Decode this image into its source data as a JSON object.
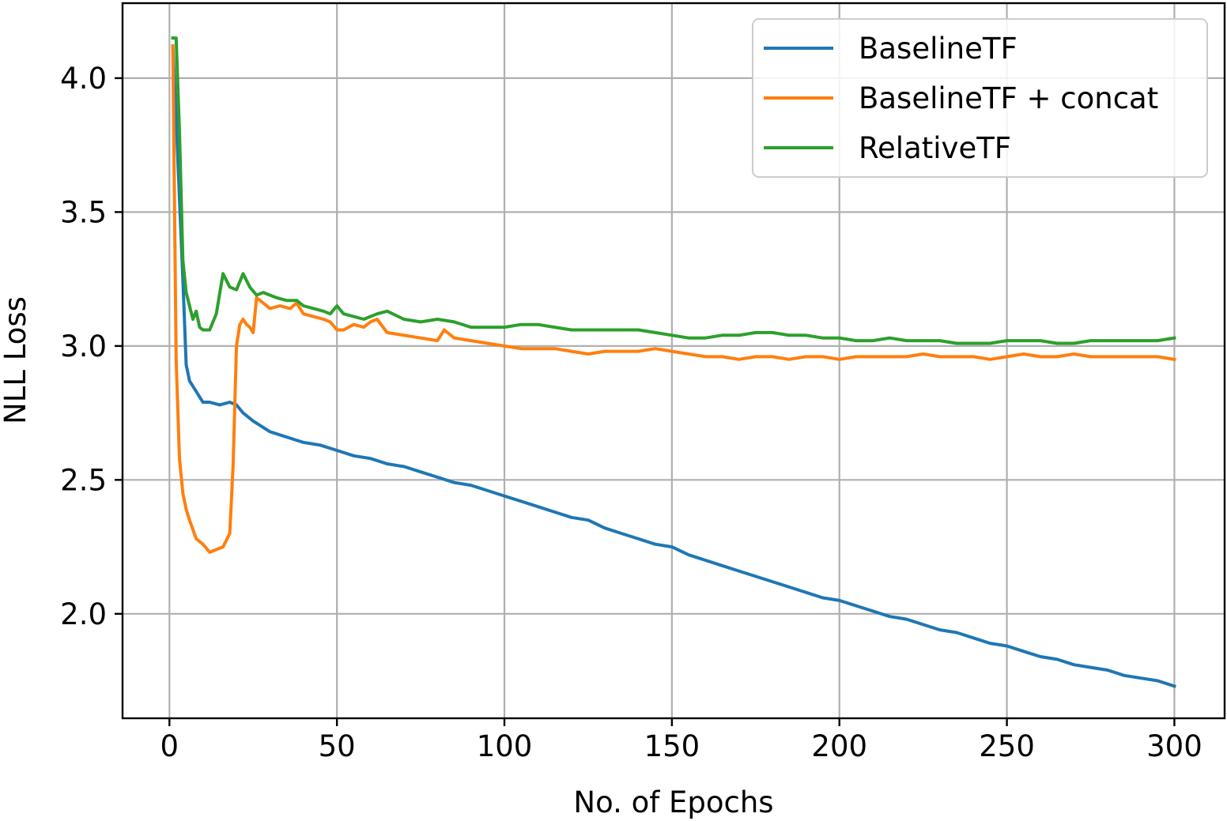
{
  "chart_data": {
    "type": "line",
    "title": "",
    "xlabel": "No. of Epochs",
    "ylabel": "NLL Loss",
    "xlim": [
      -14,
      315
    ],
    "ylim": [
      1.61,
      4.28
    ],
    "xticks": [
      0,
      50,
      100,
      150,
      200,
      250,
      300
    ],
    "xtick_labels": [
      "0",
      "50",
      "100",
      "150",
      "200",
      "250",
      "300"
    ],
    "yticks": [
      2.0,
      2.5,
      3.0,
      3.5,
      4.0
    ],
    "ytick_labels": [
      "2.0",
      "2.5",
      "3.0",
      "3.5",
      "4.0"
    ],
    "grid": true,
    "legend": "top-right",
    "series": [
      {
        "name": "BaselineTF",
        "color": "#1f77b4",
        "x": [
          1,
          2,
          3,
          4,
          5,
          6,
          8,
          10,
          12,
          15,
          18,
          20,
          22,
          25,
          30,
          35,
          40,
          45,
          50,
          55,
          60,
          65,
          70,
          75,
          80,
          85,
          90,
          95,
          100,
          105,
          110,
          115,
          120,
          125,
          130,
          135,
          140,
          145,
          150,
          155,
          160,
          165,
          170,
          175,
          180,
          185,
          190,
          195,
          200,
          205,
          210,
          215,
          220,
          225,
          230,
          235,
          240,
          245,
          250,
          255,
          260,
          265,
          270,
          275,
          280,
          285,
          290,
          295,
          300
        ],
        "values": [
          4.12,
          3.85,
          3.55,
          3.25,
          2.93,
          2.87,
          2.83,
          2.79,
          2.79,
          2.78,
          2.79,
          2.78,
          2.75,
          2.72,
          2.68,
          2.66,
          2.64,
          2.63,
          2.61,
          2.59,
          2.58,
          2.56,
          2.55,
          2.53,
          2.51,
          2.49,
          2.48,
          2.46,
          2.44,
          2.42,
          2.4,
          2.38,
          2.36,
          2.35,
          2.32,
          2.3,
          2.28,
          2.26,
          2.25,
          2.22,
          2.2,
          2.18,
          2.16,
          2.14,
          2.12,
          2.1,
          2.08,
          2.06,
          2.05,
          2.03,
          2.01,
          1.99,
          1.98,
          1.96,
          1.94,
          1.93,
          1.91,
          1.89,
          1.88,
          1.86,
          1.84,
          1.83,
          1.81,
          1.8,
          1.79,
          1.77,
          1.76,
          1.75,
          1.73
        ]
      },
      {
        "name": "BaselineTF + concat",
        "color": "#ff7f0e",
        "x": [
          1,
          2,
          3,
          4,
          5,
          6,
          8,
          10,
          12,
          14,
          16,
          18,
          19,
          20,
          21,
          22,
          23,
          24,
          25,
          26,
          28,
          30,
          33,
          36,
          38,
          40,
          43,
          46,
          48,
          50,
          52,
          55,
          58,
          60,
          62,
          65,
          70,
          75,
          80,
          82,
          85,
          90,
          95,
          100,
          105,
          110,
          115,
          120,
          125,
          130,
          135,
          140,
          145,
          150,
          155,
          160,
          165,
          170,
          175,
          180,
          185,
          190,
          195,
          200,
          205,
          210,
          215,
          220,
          225,
          230,
          235,
          240,
          245,
          250,
          255,
          260,
          265,
          270,
          275,
          280,
          285,
          290,
          295,
          300
        ],
        "values": [
          4.12,
          2.95,
          2.58,
          2.45,
          2.39,
          2.35,
          2.28,
          2.26,
          2.23,
          2.24,
          2.25,
          2.3,
          2.55,
          3.0,
          3.08,
          3.1,
          3.08,
          3.07,
          3.05,
          3.18,
          3.16,
          3.14,
          3.15,
          3.14,
          3.16,
          3.12,
          3.11,
          3.1,
          3.09,
          3.06,
          3.06,
          3.08,
          3.07,
          3.09,
          3.1,
          3.05,
          3.04,
          3.03,
          3.02,
          3.06,
          3.03,
          3.02,
          3.01,
          3.0,
          2.99,
          2.99,
          2.99,
          2.98,
          2.97,
          2.98,
          2.98,
          2.98,
          2.99,
          2.98,
          2.97,
          2.96,
          2.96,
          2.95,
          2.96,
          2.96,
          2.95,
          2.96,
          2.96,
          2.95,
          2.96,
          2.96,
          2.96,
          2.96,
          2.97,
          2.96,
          2.96,
          2.96,
          2.95,
          2.96,
          2.97,
          2.96,
          2.96,
          2.97,
          2.96,
          2.96,
          2.96,
          2.96,
          2.96,
          2.95
        ]
      },
      {
        "name": "RelativeTF",
        "color": "#2ca02c",
        "x": [
          1,
          2,
          3,
          4,
          5,
          6,
          7,
          8,
          9,
          10,
          12,
          14,
          16,
          18,
          20,
          22,
          24,
          26,
          28,
          30,
          32,
          35,
          38,
          40,
          43,
          46,
          48,
          50,
          52,
          55,
          58,
          60,
          62,
          65,
          70,
          75,
          80,
          85,
          90,
          95,
          100,
          105,
          110,
          115,
          120,
          125,
          130,
          135,
          140,
          145,
          150,
          155,
          160,
          165,
          170,
          175,
          180,
          185,
          190,
          195,
          200,
          205,
          210,
          215,
          220,
          225,
          230,
          235,
          240,
          245,
          250,
          255,
          260,
          265,
          270,
          275,
          280,
          285,
          290,
          295,
          300
        ],
        "values": [
          4.15,
          4.15,
          3.8,
          3.32,
          3.2,
          3.15,
          3.1,
          3.13,
          3.07,
          3.06,
          3.06,
          3.12,
          3.27,
          3.22,
          3.21,
          3.27,
          3.22,
          3.19,
          3.2,
          3.19,
          3.18,
          3.17,
          3.17,
          3.15,
          3.14,
          3.13,
          3.12,
          3.15,
          3.12,
          3.11,
          3.1,
          3.11,
          3.12,
          3.13,
          3.1,
          3.09,
          3.1,
          3.09,
          3.07,
          3.07,
          3.07,
          3.08,
          3.08,
          3.07,
          3.06,
          3.06,
          3.06,
          3.06,
          3.06,
          3.05,
          3.04,
          3.03,
          3.03,
          3.04,
          3.04,
          3.05,
          3.05,
          3.04,
          3.04,
          3.03,
          3.03,
          3.02,
          3.02,
          3.03,
          3.02,
          3.02,
          3.02,
          3.01,
          3.01,
          3.01,
          3.02,
          3.02,
          3.02,
          3.01,
          3.01,
          3.02,
          3.02,
          3.02,
          3.02,
          3.02,
          3.03
        ]
      }
    ]
  }
}
